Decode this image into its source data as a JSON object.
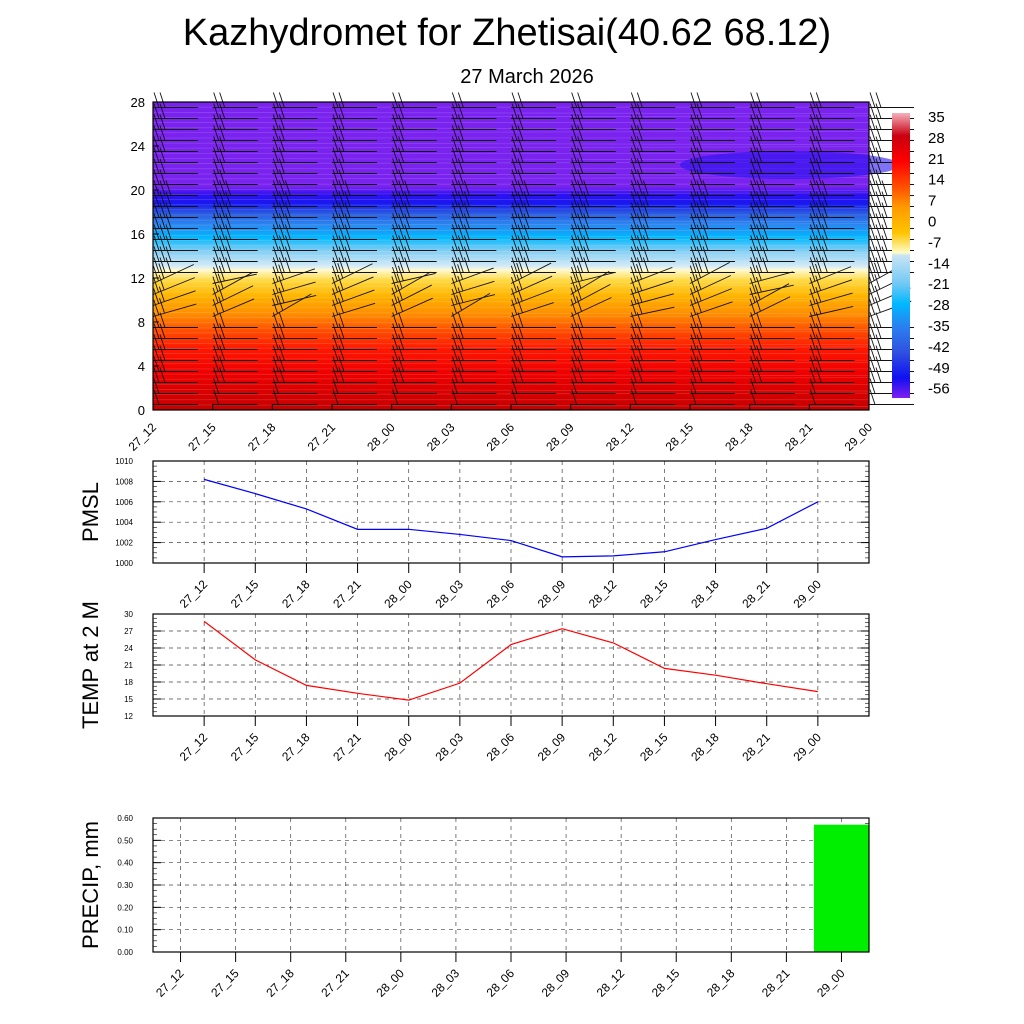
{
  "title": "Kazhydromet for Zhetisai(40.62 68.12)",
  "subtitle": "27 March 2026",
  "chart_data": [
    {
      "type": "heatmap",
      "name": "temperature-height cross-section with wind barbs",
      "x_labels": [
        "27_12",
        "27_15",
        "27_18",
        "27_21",
        "28_00",
        "28_03",
        "28_06",
        "28_09",
        "28_12",
        "28_15",
        "28_18",
        "28_21",
        "29_00"
      ],
      "ylim": [
        0,
        28
      ],
      "y_ticks": [
        "0",
        "4",
        "8",
        "12",
        "16",
        "20",
        "24",
        "28"
      ],
      "colorbar": {
        "labels": [
          "35",
          "28",
          "21",
          "14",
          "7",
          "0",
          "-7",
          "-14",
          "-21",
          "-28",
          "-35",
          "-42",
          "-49",
          "-56"
        ],
        "colors": [
          "#f0a0b0",
          "#c00010",
          "#ff0000",
          "#ff5000",
          "#ff9a00",
          "#ffc400",
          "#fff8c0",
          "#c8e4f4",
          "#70c8f4",
          "#00b8ff",
          "#2a80f0",
          "#3050e0",
          "#1010f0",
          "#8020f0"
        ]
      }
    },
    {
      "type": "line",
      "ylabel": "PMSL",
      "x_labels": [
        "27_12",
        "27_15",
        "27_18",
        "27_21",
        "28_00",
        "28_03",
        "28_06",
        "28_09",
        "28_12",
        "28_15",
        "28_18",
        "28_21",
        "29_00"
      ],
      "values": [
        1008.2,
        1006.8,
        1005.3,
        1003.3,
        1003.3,
        1002.8,
        1002.2,
        1000.6,
        1000.7,
        1001.1,
        1002.3,
        1003.4,
        1006.0
      ],
      "ylim": [
        1000,
        1010
      ],
      "y_ticks": [
        "1000",
        "1002",
        "1004",
        "1006",
        "1008",
        "1010"
      ],
      "color": "#0000ff"
    },
    {
      "type": "line",
      "ylabel": "TEMP at 2 M",
      "x_labels": [
        "27_12",
        "27_15",
        "27_18",
        "27_21",
        "28_00",
        "28_03",
        "28_06",
        "28_09",
        "28_12",
        "28_15",
        "28_18",
        "28_21",
        "29_00"
      ],
      "values": [
        28.7,
        21.9,
        17.4,
        16.0,
        14.8,
        17.8,
        24.6,
        27.4,
        24.9,
        20.4,
        19.2,
        17.7,
        16.3
      ],
      "ylim": [
        12,
        30
      ],
      "y_ticks": [
        "12",
        "15",
        "18",
        "21",
        "24",
        "27",
        "30"
      ],
      "color": "#ff0000"
    },
    {
      "type": "bar",
      "ylabel": "PRECIP, mm",
      "x_labels": [
        "27_12",
        "27_15",
        "27_18",
        "27_21",
        "28_00",
        "28_03",
        "28_06",
        "28_09",
        "28_12",
        "28_15",
        "28_18",
        "28_21",
        "29_00"
      ],
      "values": [
        0,
        0,
        0,
        0,
        0,
        0,
        0,
        0,
        0,
        0,
        0,
        0,
        0.57
      ],
      "ylim": [
        0,
        0.6
      ],
      "y_ticks": [
        "0.00",
        "0.10",
        "0.20",
        "0.30",
        "0.40",
        "0.50",
        "0.60"
      ],
      "color": "#00ee00"
    }
  ]
}
